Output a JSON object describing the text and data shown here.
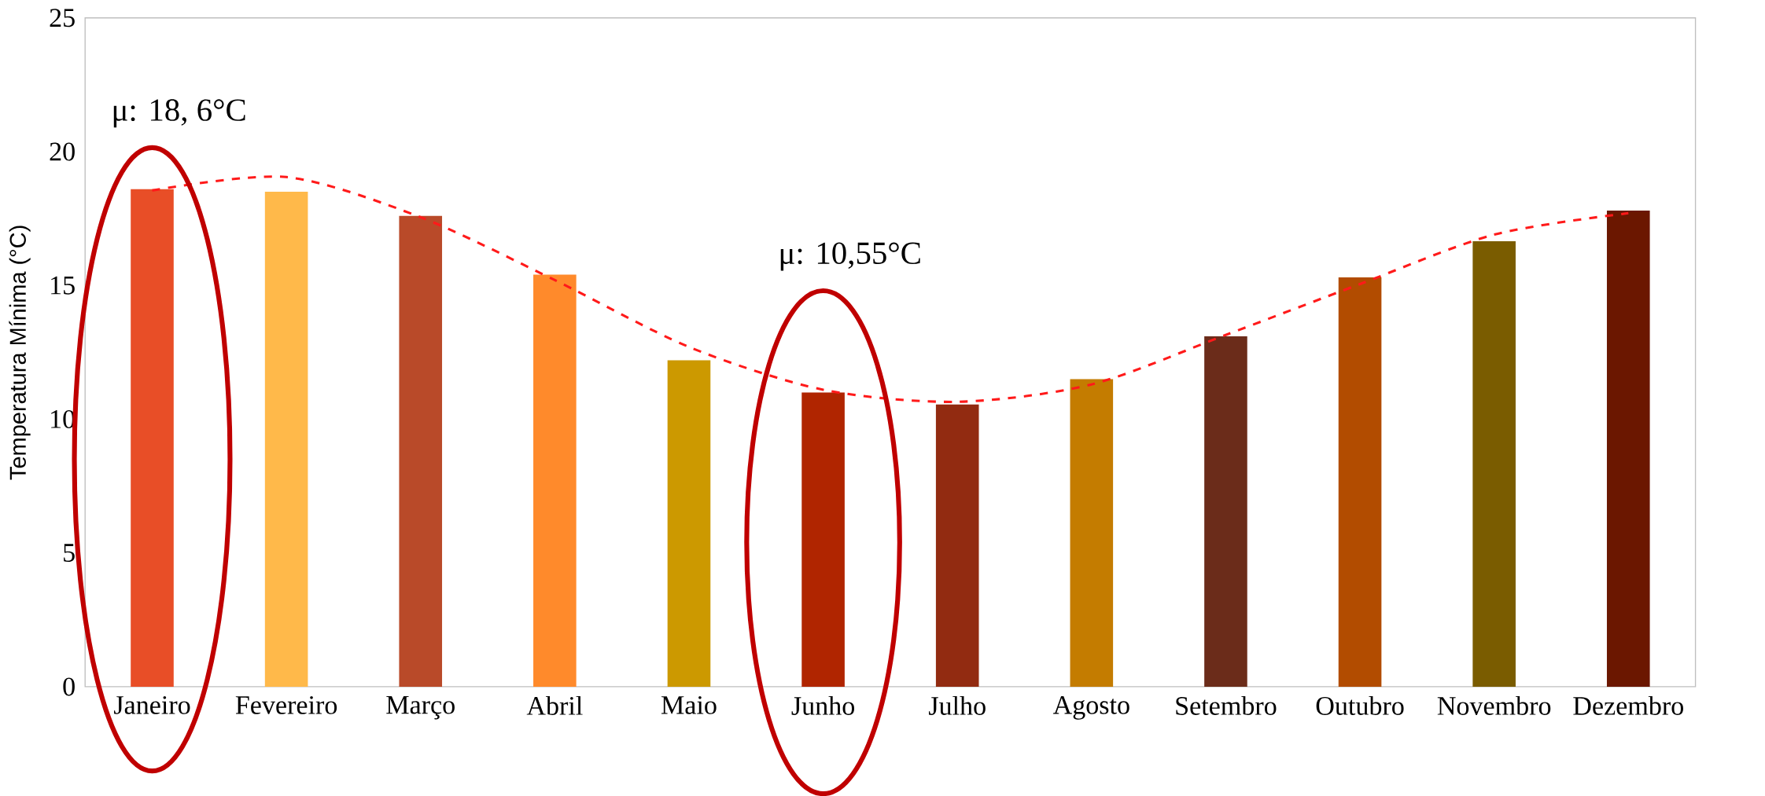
{
  "chart_data": {
    "type": "bar",
    "ylabel": "Temperatura Mínima (°C)",
    "categories": [
      "Janeiro",
      "Fevereiro",
      "Março",
      "Abril",
      "Maio",
      "Junho",
      "Julho",
      "Agosto",
      "Setembro",
      "Outubro",
      "Novembro",
      "Dezembro"
    ],
    "values": [
      18.6,
      18.5,
      17.6,
      15.4,
      12.2,
      11.0,
      10.55,
      11.5,
      13.1,
      15.3,
      16.65,
      17.8
    ],
    "colors": [
      "#e84e27",
      "#ffb94a",
      "#b94a29",
      "#ff8a2b",
      "#cc9900",
      "#b02500",
      "#922b11",
      "#c47c00",
      "#6b2c1a",
      "#b24c00",
      "#7a5c00",
      "#6b1700"
    ],
    "series": [
      {
        "type": "line",
        "color": "#ff1a1a",
        "line_style": "dashed",
        "values": [
          18.55,
          19.05,
          17.55,
          15.2,
          12.7,
          11.1,
          10.65,
          11.3,
          13.15,
          15.05,
          16.9,
          17.7
        ]
      }
    ],
    "ylim": [
      0,
      25
    ],
    "yticks": [
      0,
      5,
      10,
      15,
      20,
      25
    ],
    "annotations": [
      "μ: 18, 6°C",
      "μ: 10,55°C"
    ]
  }
}
